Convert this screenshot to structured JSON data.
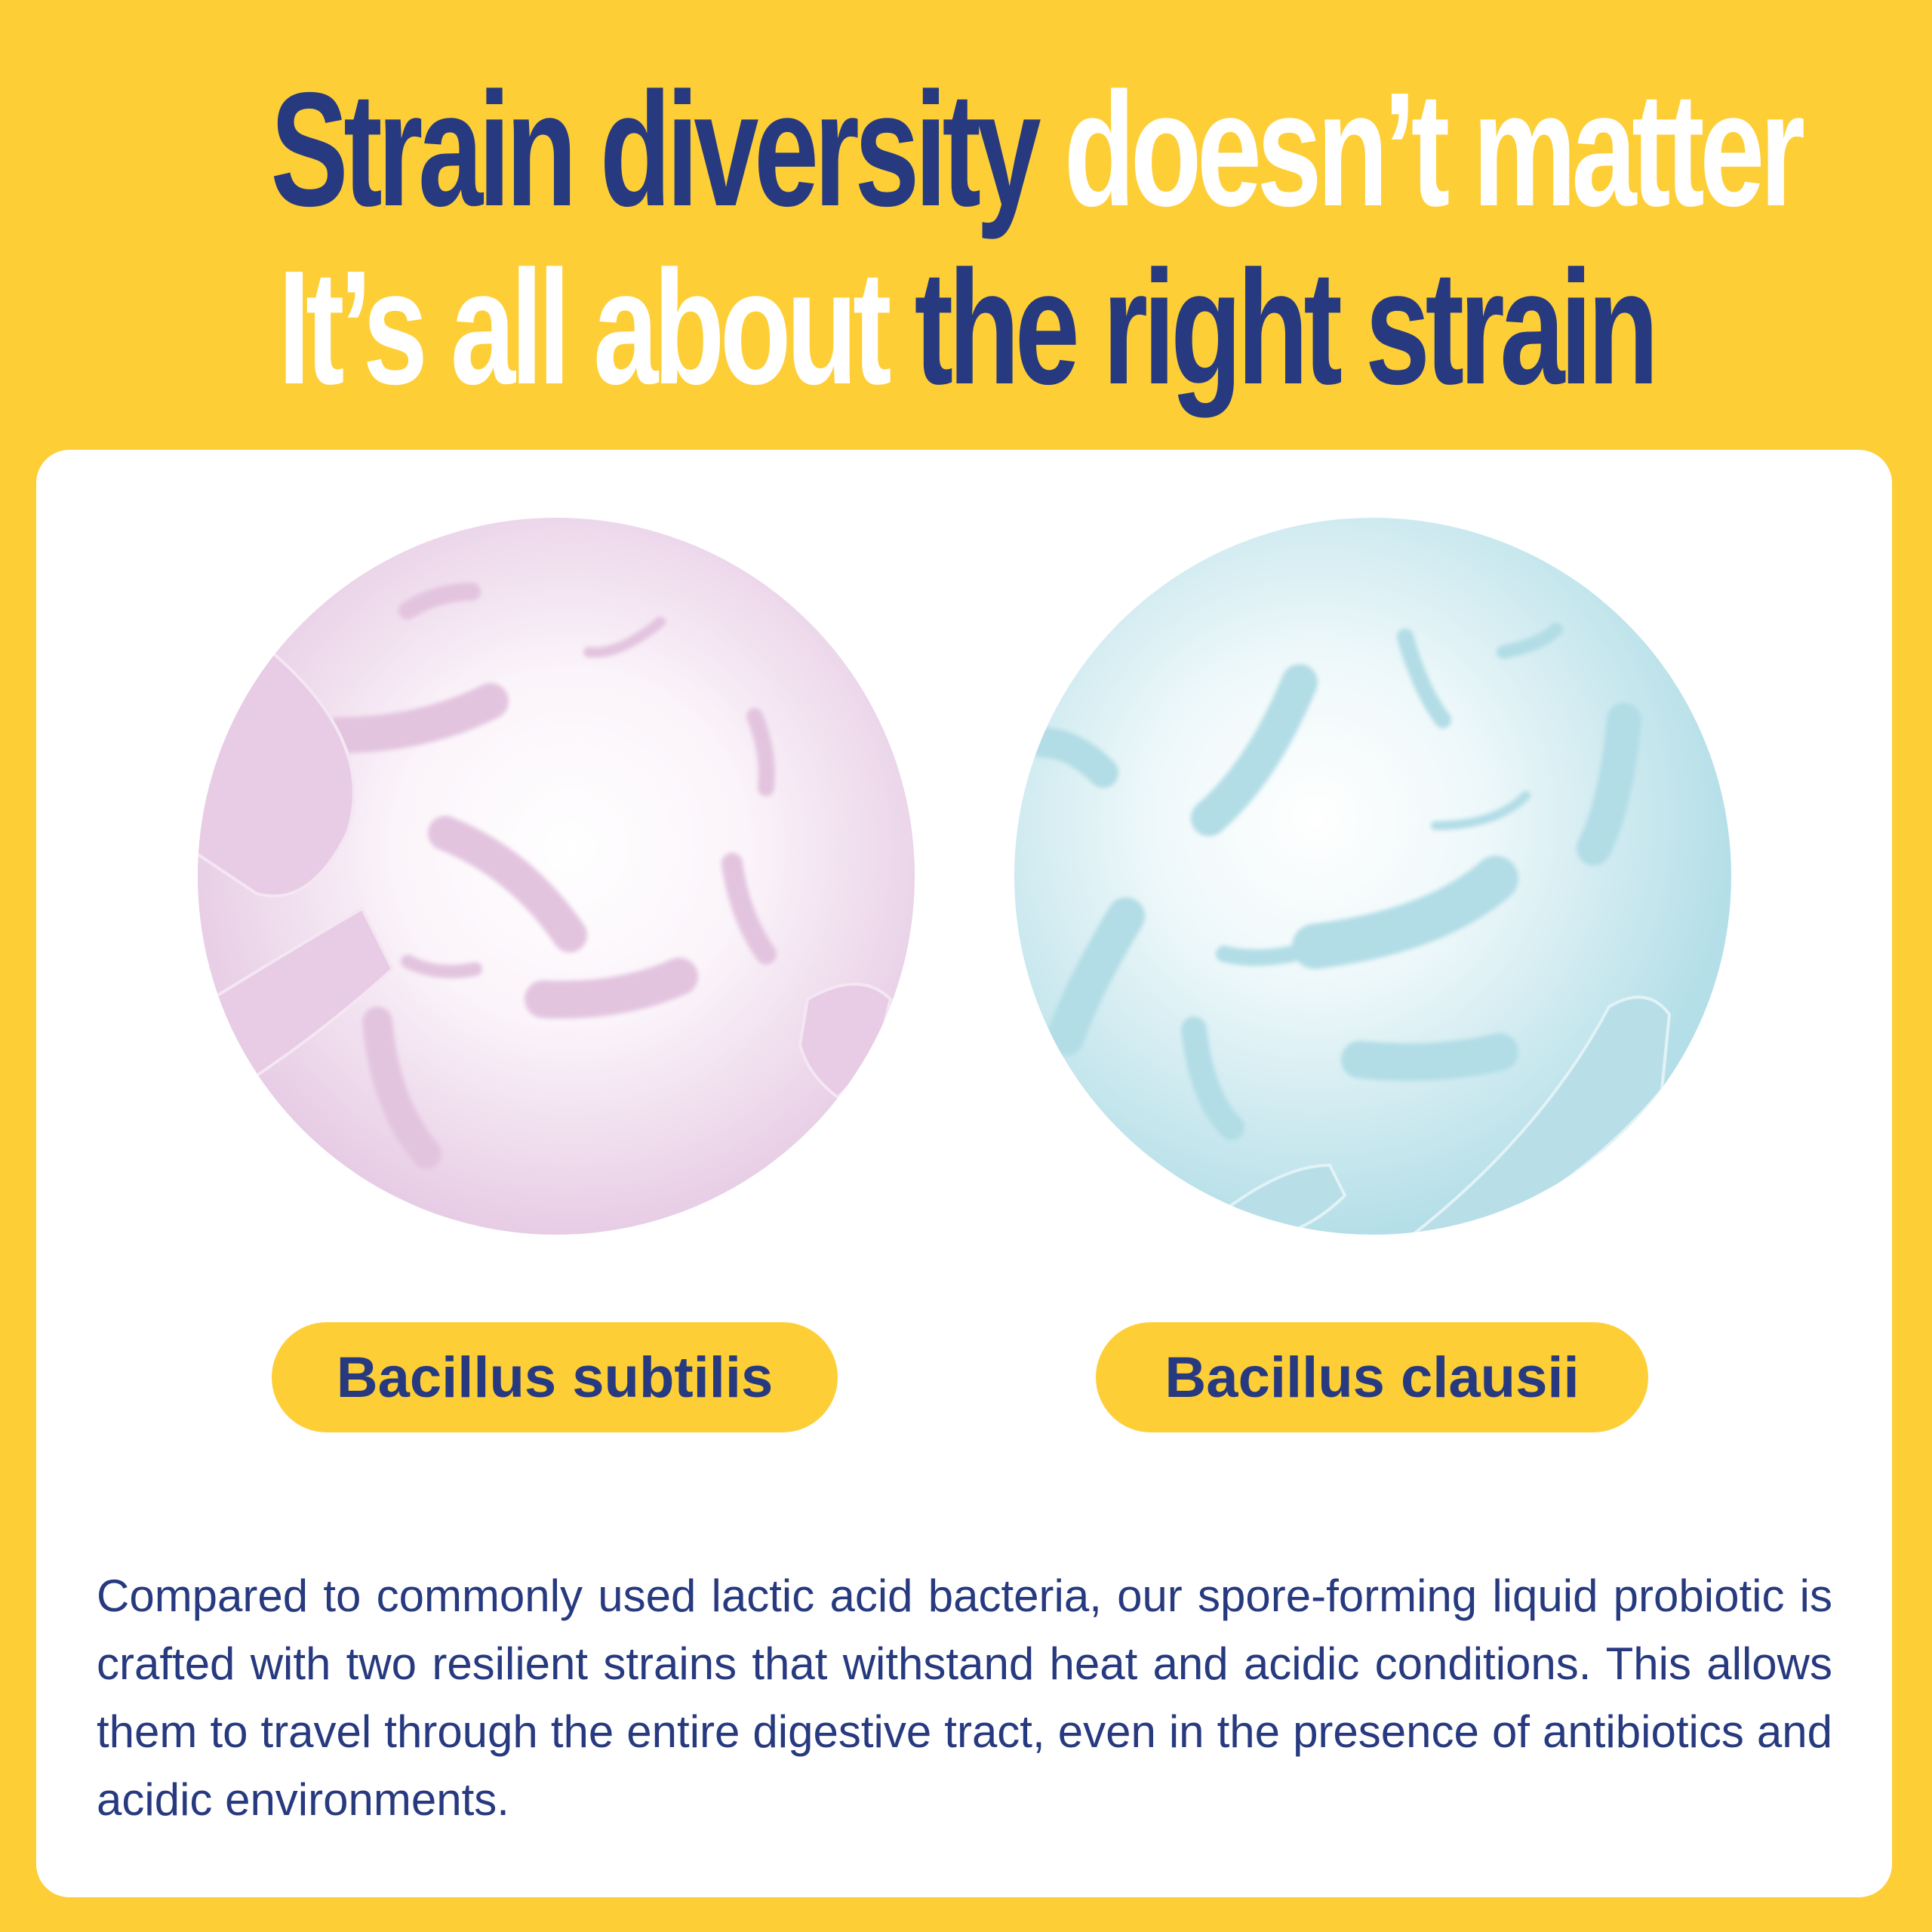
{
  "headline": {
    "line1_part1": "Strain diversity",
    "line1_part2": "doesn’t matter",
    "line2_part1": "It’s all about",
    "line2_part2": "the right strain"
  },
  "strains": [
    {
      "label": "Bacillus subtilis",
      "color": "#E6C8E2"
    },
    {
      "label": "Bacillus clausii",
      "color": "#B4DEE7"
    }
  ],
  "description": "Compared to commonly used lactic acid bacteria, our spore-forming liquid probiotic is crafted with two resilient strains that withstand heat and acidic conditions. This allows them to travel through the entire digestive tract, even in the presence of antibiotics and acidic environments.",
  "colors": {
    "background": "#FECE37",
    "navy": "#273A7F",
    "card": "#FFFFFF"
  }
}
